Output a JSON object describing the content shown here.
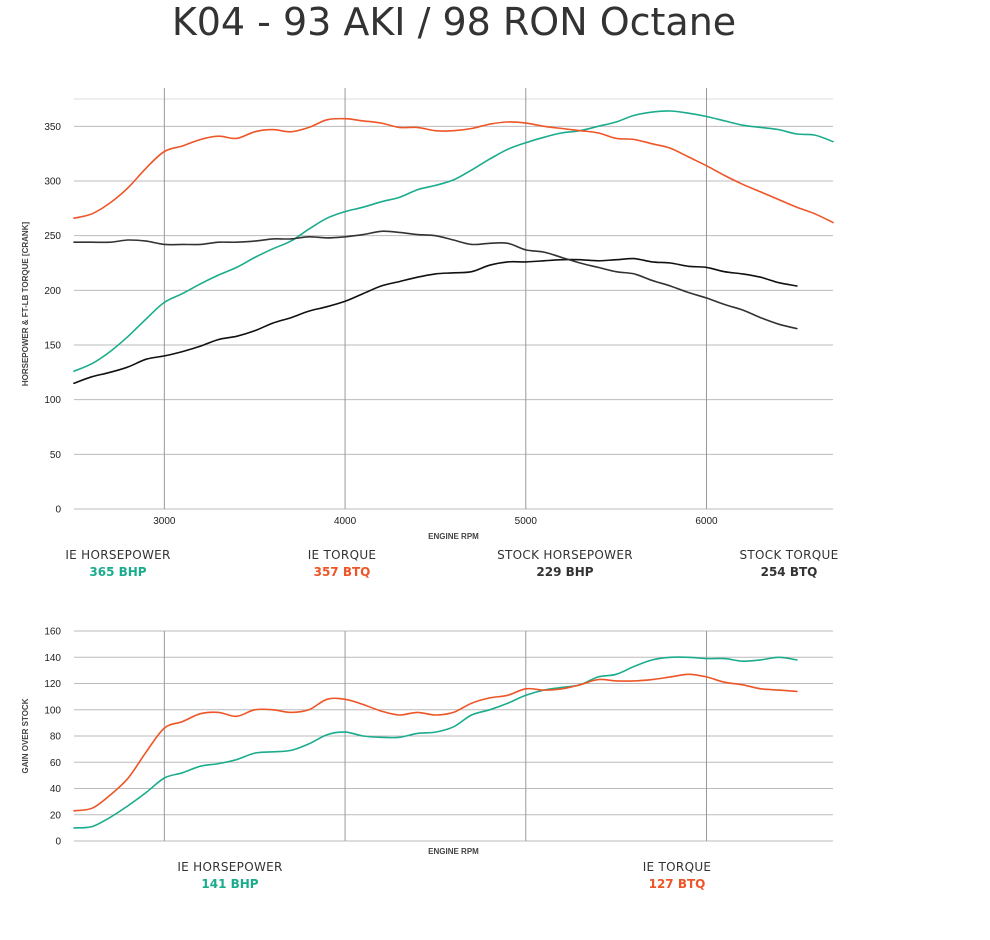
{
  "title": "K04 - 93 AKI / 98 RON Octane",
  "colors": {
    "ie_hp": "#1aac8c",
    "ie_tq": "#ee5527",
    "stock_hp": "#111111",
    "stock_tq": "#333333",
    "grid": "#bbbbbb"
  },
  "chart_data": [
    {
      "type": "line",
      "title": "K04 - 93 AKI / 98 RON Octane",
      "xlabel": "ENGINE RPM",
      "ylabel": "HORSEPOWER & FT-LB TORQUE [CRANK]",
      "xlim": [
        2500,
        6700
      ],
      "ylim": [
        0,
        375
      ],
      "xticks": [
        3000,
        4000,
        5000,
        6000
      ],
      "yticks": [
        0,
        50,
        100,
        150,
        200,
        250,
        300,
        350
      ],
      "grid": true,
      "series": [
        {
          "name": "IE HORSEPOWER",
          "color": "#1aac8c",
          "x": [
            2500,
            2600,
            2700,
            2800,
            2900,
            3000,
            3100,
            3200,
            3300,
            3400,
            3500,
            3600,
            3700,
            3800,
            3900,
            4000,
            4100,
            4200,
            4300,
            4400,
            4500,
            4600,
            4700,
            4800,
            4900,
            5000,
            5100,
            5200,
            5300,
            5400,
            5500,
            5600,
            5700,
            5800,
            5900,
            6000,
            6100,
            6200,
            6300,
            6400,
            6500,
            6600,
            6700
          ],
          "y": [
            126,
            133,
            144,
            158,
            174,
            189,
            197,
            206,
            214,
            221,
            230,
            238,
            245,
            256,
            266,
            272,
            276,
            281,
            285,
            292,
            296,
            301,
            310,
            320,
            329,
            335,
            340,
            344,
            346,
            350,
            354,
            360,
            363,
            364,
            362,
            359,
            355,
            351,
            349,
            347,
            343,
            342,
            336
          ]
        },
        {
          "name": "IE TORQUE",
          "color": "#ee5527",
          "x": [
            2500,
            2600,
            2700,
            2800,
            2900,
            3000,
            3100,
            3200,
            3300,
            3400,
            3500,
            3600,
            3700,
            3800,
            3900,
            4000,
            4100,
            4200,
            4300,
            4400,
            4500,
            4600,
            4700,
            4800,
            4900,
            5000,
            5100,
            5200,
            5300,
            5400,
            5500,
            5600,
            5700,
            5800,
            5900,
            6000,
            6100,
            6200,
            6300,
            6400,
            6500,
            6600,
            6700
          ],
          "y": [
            266,
            270,
            280,
            294,
            312,
            327,
            332,
            338,
            341,
            339,
            345,
            347,
            345,
            349,
            356,
            357,
            355,
            353,
            349,
            349,
            346,
            346,
            348,
            352,
            354,
            353,
            350,
            348,
            346,
            344,
            339,
            338,
            334,
            330,
            322,
            314,
            305,
            297,
            290,
            283,
            276,
            270,
            262
          ]
        },
        {
          "name": "STOCK HORSEPOWER",
          "color": "#111111",
          "x": [
            2500,
            2600,
            2700,
            2800,
            2900,
            3000,
            3100,
            3200,
            3300,
            3400,
            3500,
            3600,
            3700,
            3800,
            3900,
            4000,
            4100,
            4200,
            4300,
            4400,
            4500,
            4600,
            4700,
            4800,
            4900,
            5000,
            5100,
            5200,
            5300,
            5400,
            5500,
            5600,
            5700,
            5800,
            5900,
            6000,
            6100,
            6200,
            6300,
            6400,
            6500
          ],
          "y": [
            115,
            121,
            125,
            130,
            137,
            140,
            144,
            149,
            155,
            158,
            163,
            170,
            175,
            181,
            185,
            190,
            197,
            204,
            208,
            212,
            215,
            216,
            217,
            223,
            226,
            226,
            227,
            228,
            228,
            227,
            228,
            229,
            226,
            225,
            222,
            221,
            217,
            215,
            212,
            207,
            204
          ]
        },
        {
          "name": "STOCK TORQUE",
          "color": "#333333",
          "x": [
            2500,
            2600,
            2700,
            2800,
            2900,
            3000,
            3100,
            3200,
            3300,
            3400,
            3500,
            3600,
            3700,
            3800,
            3900,
            4000,
            4100,
            4200,
            4300,
            4400,
            4500,
            4600,
            4700,
            4800,
            4900,
            5000,
            5100,
            5200,
            5300,
            5400,
            5500,
            5600,
            5700,
            5800,
            5900,
            6000,
            6100,
            6200,
            6300,
            6400,
            6500
          ],
          "y": [
            244,
            244,
            244,
            246,
            245,
            242,
            242,
            242,
            244,
            244,
            245,
            247,
            247,
            249,
            248,
            249,
            251,
            254,
            253,
            251,
            250,
            246,
            242,
            243,
            243,
            237,
            235,
            230,
            225,
            221,
            217,
            215,
            209,
            204,
            198,
            193,
            187,
            182,
            175,
            169,
            165
          ]
        }
      ]
    },
    {
      "type": "line",
      "xlabel": "ENGINE RPM",
      "ylabel": "GAIN OVER STOCK",
      "xlim": [
        2500,
        6700
      ],
      "ylim": [
        0,
        160
      ],
      "xticks": [
        3000,
        4000,
        5000,
        6000
      ],
      "yticks": [
        0,
        20,
        40,
        60,
        80,
        100,
        120,
        140,
        160
      ],
      "grid": true,
      "series": [
        {
          "name": "IE HORSEPOWER",
          "color": "#1aac8c",
          "x": [
            2500,
            2600,
            2700,
            2800,
            2900,
            3000,
            3100,
            3200,
            3300,
            3400,
            3500,
            3600,
            3700,
            3800,
            3900,
            4000,
            4100,
            4200,
            4300,
            4400,
            4500,
            4600,
            4700,
            4800,
            4900,
            5000,
            5100,
            5200,
            5300,
            5400,
            5500,
            5600,
            5700,
            5800,
            5900,
            6000,
            6100,
            6200,
            6300,
            6400,
            6500
          ],
          "y": [
            10,
            11,
            18,
            27,
            37,
            48,
            52,
            57,
            59,
            62,
            67,
            68,
            69,
            74,
            81,
            83,
            80,
            79,
            79,
            82,
            83,
            87,
            96,
            100,
            105,
            111,
            115,
            117,
            119,
            125,
            127,
            133,
            138,
            140,
            140,
            139,
            139,
            137,
            138,
            140,
            138
          ]
        },
        {
          "name": "IE TORQUE",
          "color": "#ee5527",
          "x": [
            2500,
            2600,
            2700,
            2800,
            2900,
            3000,
            3100,
            3200,
            3300,
            3400,
            3500,
            3600,
            3700,
            3800,
            3900,
            4000,
            4100,
            4200,
            4300,
            4400,
            4500,
            4600,
            4700,
            4800,
            4900,
            5000,
            5100,
            5200,
            5300,
            5400,
            5500,
            5600,
            5700,
            5800,
            5900,
            6000,
            6100,
            6200,
            6300,
            6400,
            6500
          ],
          "y": [
            23,
            25,
            35,
            48,
            68,
            86,
            91,
            97,
            98,
            95,
            100,
            100,
            98,
            100,
            108,
            108,
            104,
            99,
            96,
            98,
            96,
            98,
            105,
            109,
            111,
            116,
            115,
            116,
            119,
            123,
            122,
            122,
            123,
            125,
            127,
            125,
            121,
            119,
            116,
            115,
            114
          ]
        }
      ]
    }
  ],
  "legend_top": [
    {
      "label": "IE HORSEPOWER",
      "value": "365 BHP",
      "color": "#1aac8c"
    },
    {
      "label": "IE TORQUE",
      "value": "357 BTQ",
      "color": "#ee5527"
    },
    {
      "label": "STOCK HORSEPOWER",
      "value": "229 BHP",
      "color": "#333333"
    },
    {
      "label": "STOCK TORQUE",
      "value": "254 BTQ",
      "color": "#333333"
    }
  ],
  "legend_bottom": [
    {
      "label": "IE HORSEPOWER",
      "value": "141 BHP",
      "color": "#1aac8c"
    },
    {
      "label": "IE TORQUE",
      "value": "127 BTQ",
      "color": "#ee5527"
    }
  ]
}
